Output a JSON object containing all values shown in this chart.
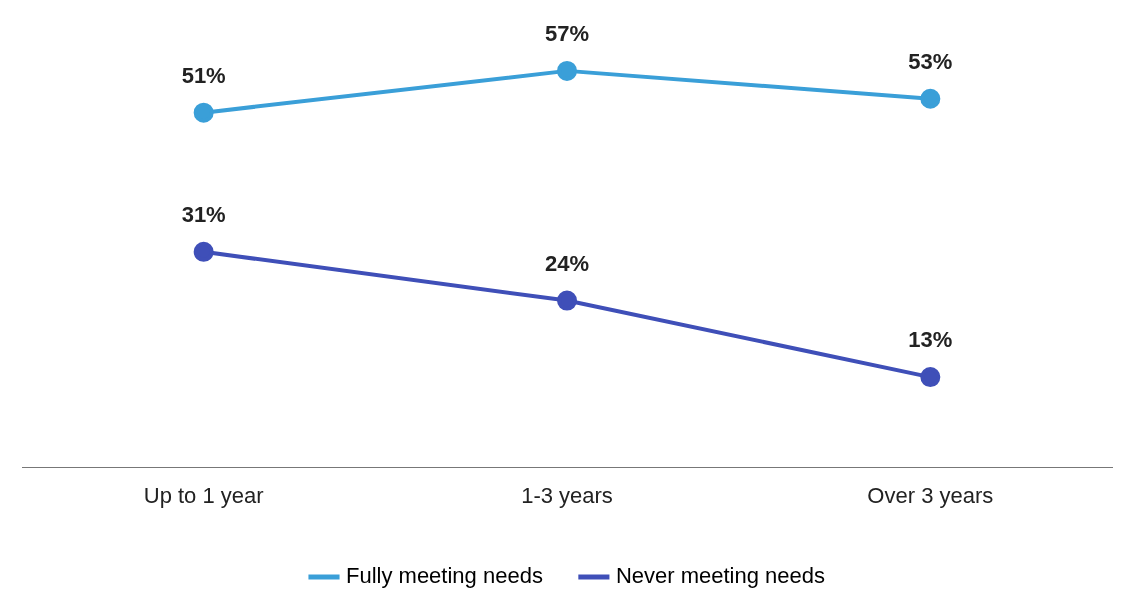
{
  "chart_data": {
    "type": "line",
    "categories": [
      "Up to 1 year",
      "1-3 years",
      "Over 3 years"
    ],
    "series": [
      {
        "name": "Fully meeting needs",
        "color": "#3a9fd8",
        "values": [
          51,
          57,
          53
        ],
        "value_labels": [
          "51%",
          "57%",
          "53%"
        ]
      },
      {
        "name": "Never meeting needs",
        "color": "#3f4fb8",
        "values": [
          31,
          24,
          13
        ],
        "value_labels": [
          "31%",
          "24%",
          "13%"
        ]
      }
    ],
    "marker": "circle",
    "line_style": "solid",
    "legend": "bottom"
  }
}
